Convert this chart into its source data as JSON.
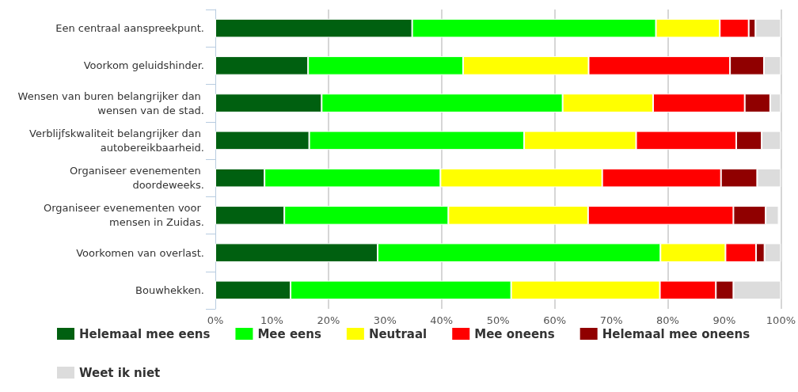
{
  "chart_data": {
    "type": "bar",
    "orientation": "horizontal",
    "stacked": true,
    "categories": [
      "Een centraal aanspreekpunt.",
      "Voorkom geluidshinder.",
      "Wensen van buren belangrijker dan wensen van de stad.",
      "Verblijfskwaliteit belangrijker dan autobereikbaarheid.",
      "Organiseer evenementen doordeweeks.",
      "Organiseer evenementen voor mensen in Zuidas.",
      "Voorkomen van overlast.",
      "Bouwhekken."
    ],
    "series": [
      {
        "name": "Helemaal mee eens",
        "color": "#006010",
        "values": [
          34.8,
          16.4,
          18.8,
          16.6,
          8.7,
          12.2,
          28.7,
          13.3
        ]
      },
      {
        "name": "Mee eens",
        "color": "#00ff00",
        "values": [
          43.1,
          27.4,
          42.6,
          38.0,
          31.1,
          29.0,
          50.0,
          39.0
        ]
      },
      {
        "name": "Neutraal",
        "color": "#ffff00",
        "values": [
          11.3,
          22.2,
          16.0,
          19.8,
          28.6,
          24.7,
          11.5,
          26.3
        ]
      },
      {
        "name": "Mee oneens",
        "color": "#ff0000",
        "values": [
          5.1,
          25.0,
          16.2,
          17.7,
          21.0,
          25.7,
          5.4,
          9.9
        ]
      },
      {
        "name": "Helemaal mee oneens",
        "color": "#900000",
        "values": [
          1.2,
          6.0,
          4.5,
          4.5,
          6.4,
          5.7,
          1.5,
          3.1
        ]
      },
      {
        "name": "Weet ik niet",
        "color": "#dcdcdc",
        "values": [
          4.5,
          3.0,
          1.9,
          3.4,
          4.2,
          2.3,
          2.9,
          8.4
        ]
      }
    ],
    "xlim": [
      0,
      100
    ],
    "xticks": [
      {
        "value": 0,
        "label": "0%"
      },
      {
        "value": 10,
        "label": "10%"
      },
      {
        "value": 20,
        "label": "20%"
      },
      {
        "value": 30,
        "label": "30%"
      },
      {
        "value": 40,
        "label": "40%"
      },
      {
        "value": 50,
        "label": "50%"
      },
      {
        "value": 60,
        "label": "60%"
      },
      {
        "value": 70,
        "label": "70%"
      },
      {
        "value": 80,
        "label": "80%"
      },
      {
        "value": 90,
        "label": "90%"
      },
      {
        "value": 100,
        "label": "100%"
      }
    ],
    "grid": "x",
    "legend": "bottom"
  }
}
